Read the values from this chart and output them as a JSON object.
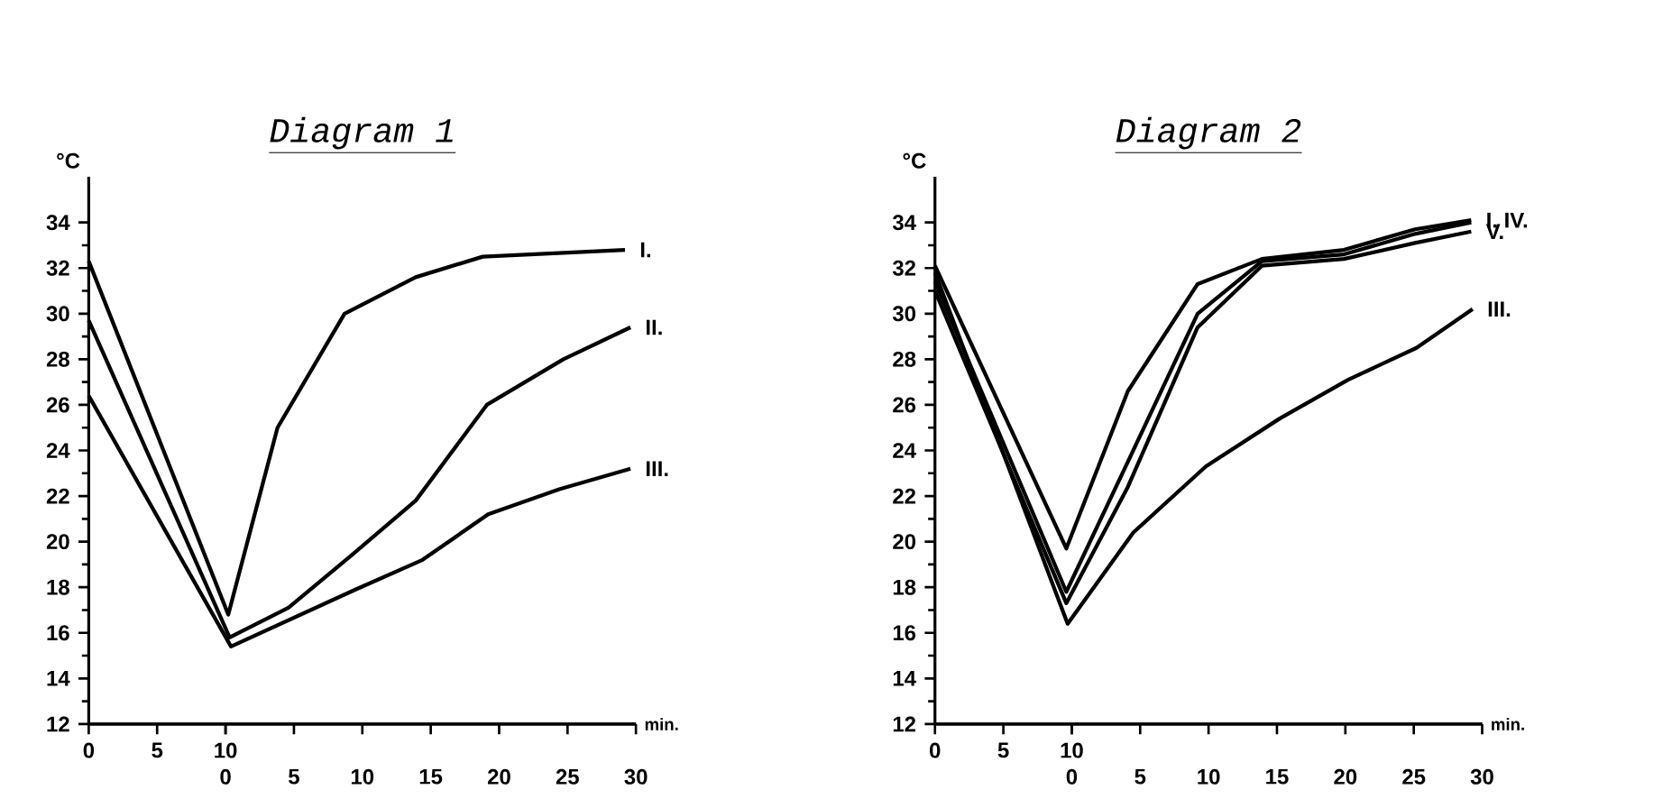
{
  "chart_data": [
    {
      "type": "line",
      "title": "Diagram 1",
      "xlabel": "min.",
      "ylabel": "°C",
      "xlim": [
        0,
        40
      ],
      "ylim": [
        12,
        36
      ],
      "xticks": [
        0,
        5,
        10
      ],
      "x2lim": [
        -10,
        30
      ],
      "x2ticks": [
        0,
        5,
        10,
        15,
        20,
        25,
        30
      ],
      "yticks": [
        12,
        14,
        16,
        18,
        20,
        22,
        24,
        26,
        28,
        30,
        32,
        34
      ],
      "legend": false,
      "grid": false,
      "marker": "none",
      "line_style": "solid",
      "series": [
        {
          "name": "I.",
          "color": "#000000",
          "x": [
            0,
            10.2,
            13.8,
            18.7,
            23.9,
            28.8,
            39.2
          ],
          "values": [
            32.3,
            16.8,
            25.0,
            30.0,
            31.6,
            32.5,
            32.8
          ]
        },
        {
          "name": "II.",
          "color": "#000000",
          "x": [
            0,
            10.3,
            14.6,
            19.2,
            23.9,
            29.1,
            34.7,
            39.6
          ],
          "values": [
            29.7,
            15.8,
            17.1,
            19.4,
            21.8,
            26.0,
            28.0,
            29.4
          ]
        },
        {
          "name": "III.",
          "color": "#000000",
          "x": [
            0,
            10.4,
            19.5,
            24.4,
            29.2,
            34.4,
            39.6
          ],
          "values": [
            26.4,
            15.4,
            17.9,
            19.2,
            21.2,
            22.3,
            23.2
          ]
        }
      ]
    },
    {
      "type": "line",
      "title": "Diagram 2",
      "xlabel": "min.",
      "ylabel": "°C",
      "xlim": [
        0,
        40
      ],
      "ylim": [
        12,
        36
      ],
      "xticks": [
        0,
        5,
        10
      ],
      "x2lim": [
        -10,
        30
      ],
      "x2ticks": [
        0,
        5,
        10,
        15,
        20,
        25,
        30
      ],
      "yticks": [
        12,
        14,
        16,
        18,
        20,
        22,
        24,
        26,
        28,
        30,
        32,
        34
      ],
      "legend": false,
      "grid": false,
      "marker": "none",
      "line_style": "solid",
      "series": [
        {
          "name": "I. IV.",
          "color": "#000000",
          "x": [
            0,
            9.6,
            14.1,
            19.2,
            23.9,
            29.9,
            35.1,
            39.2
          ],
          "values": [
            32.1,
            19.7,
            26.6,
            31.3,
            32.4,
            32.8,
            33.7,
            34.1
          ]
        },
        {
          "color": "#000000",
          "x": [
            0,
            9.6,
            14.1,
            19.2,
            23.9,
            29.9,
            35.1,
            39.2
          ],
          "values": [
            31.4,
            17.8,
            23.5,
            30.0,
            32.3,
            32.6,
            33.5,
            34.0
          ]
        },
        {
          "name": "V.",
          "color": "#000000",
          "x": [
            0,
            9.6,
            14.1,
            19.2,
            23.9,
            29.9,
            35.1,
            39.2
          ],
          "values": [
            31.0,
            17.3,
            22.4,
            29.4,
            32.1,
            32.4,
            33.1,
            33.6
          ]
        },
        {
          "name": "III.",
          "color": "#000000",
          "x": [
            0,
            9.7,
            14.5,
            19.8,
            25.2,
            30.2,
            35.2,
            39.3
          ],
          "values": [
            31.8,
            16.4,
            20.4,
            23.3,
            25.4,
            27.1,
            28.5,
            30.2
          ]
        }
      ]
    }
  ]
}
